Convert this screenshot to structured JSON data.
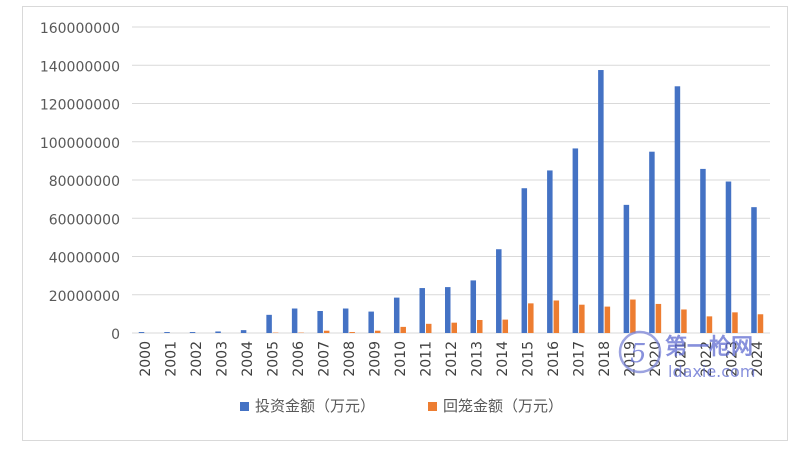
{
  "chart_data": {
    "type": "bar",
    "categories": [
      "2000",
      "2001",
      "2002",
      "2003",
      "2004",
      "2005",
      "2006",
      "2007",
      "2008",
      "2009",
      "2010",
      "2011",
      "2012",
      "2013",
      "2014",
      "2015",
      "2016",
      "2017",
      "2018",
      "2019",
      "2020",
      "2021",
      "2022",
      "2023",
      "2024"
    ],
    "series": [
      {
        "name": "投资金额（万元）",
        "color": "#4472c4",
        "values": [
          500000,
          500000,
          500000,
          800000,
          1500000,
          9500000,
          12800000,
          11500000,
          12800000,
          11200000,
          18500000,
          23500000,
          24000000,
          27500000,
          43800000,
          75700000,
          85000000,
          96500000,
          137500000,
          67000000,
          94800000,
          129000000,
          85800000,
          79200000,
          65800000
        ]
      },
      {
        "name": "回笼金额（万元）",
        "color": "#ed7d31",
        "values": [
          0,
          0,
          0,
          0,
          0,
          200000,
          200000,
          1200000,
          500000,
          1200000,
          3200000,
          4800000,
          5400000,
          6800000,
          7000000,
          15500000,
          17000000,
          14800000,
          13800000,
          17500000,
          15200000,
          12300000,
          8700000,
          10800000,
          9800000
        ]
      }
    ],
    "yticks": [
      "0",
      "20000000",
      "40000000",
      "60000000",
      "80000000",
      "100000000",
      "120000000",
      "140000000",
      "160000000"
    ],
    "ylim": [
      0,
      160000000
    ],
    "grid": true,
    "legend": "bottom"
  },
  "watermark": {
    "text_top": "第一枪网",
    "text_bottom": "ldaxie.com"
  }
}
